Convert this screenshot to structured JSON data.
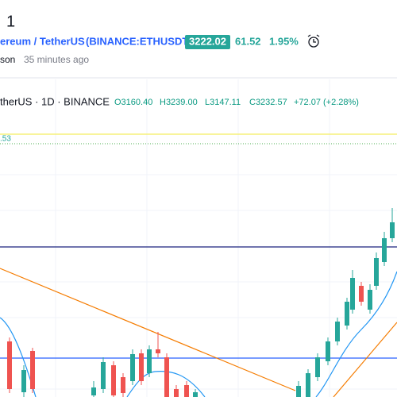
{
  "header": {
    "title": "1",
    "symbol_name": "ereum / TetherUS",
    "symbol_code": "(BINANCE:ETHUSDT)",
    "price": "3222.02",
    "change": "61.52",
    "change_pct": "1.95%",
    "author": "son",
    "time": "35 minutes ago"
  },
  "legend": {
    "symbol": "therUS · 1D · BINANCE",
    "open": "O3160.40",
    "high": "H3239.00",
    "low": "L3147.11",
    "close": "C3232.57",
    "change": "+72.07 (+2.28%)"
  },
  "level_label": ".53"
}
